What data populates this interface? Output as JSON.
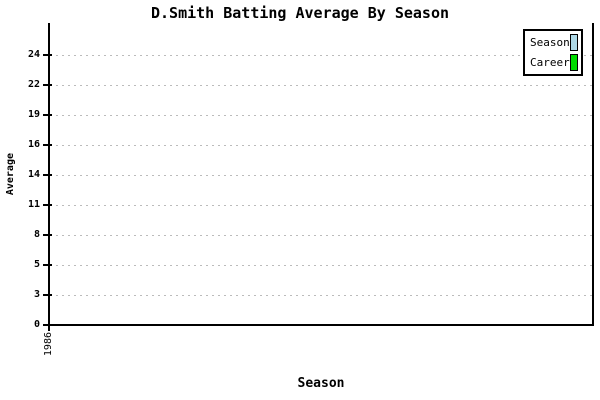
{
  "chart": {
    "title": "D.Smith Batting Average By Season",
    "y_axis": {
      "label": "Average",
      "ticks": [
        "0",
        "3",
        "5",
        "8",
        "11",
        "14",
        "16",
        "19",
        "22",
        "24"
      ]
    },
    "x_axis": {
      "label": "Season",
      "ticks": [
        "1986"
      ]
    },
    "legend": {
      "items": [
        {
          "label": "Season",
          "color": "#ADD8E6"
        },
        {
          "label": "Career",
          "color": "#00DC00"
        }
      ]
    },
    "colors": {
      "axis": "#000000",
      "grid": "#bbbbbb",
      "background": "#ffffff"
    }
  },
  "chart_data": {
    "type": "line",
    "title": "D.Smith Batting Average By Season",
    "xlabel": "Season",
    "ylabel": "Average",
    "x": [
      "1986"
    ],
    "series": [
      {
        "name": "Season",
        "color": "#ADD8E6",
        "values": []
      },
      {
        "name": "Career",
        "color": "#00DC00",
        "values": []
      }
    ],
    "y_tick_labels": [
      0,
      3,
      5,
      8,
      11,
      14,
      16,
      19,
      22,
      24
    ],
    "ylim": [
      0,
      27
    ],
    "grid": "horizontal-dashed",
    "legend_position": "top-right",
    "note": "plot area is empty - no data points or lines are drawn"
  }
}
